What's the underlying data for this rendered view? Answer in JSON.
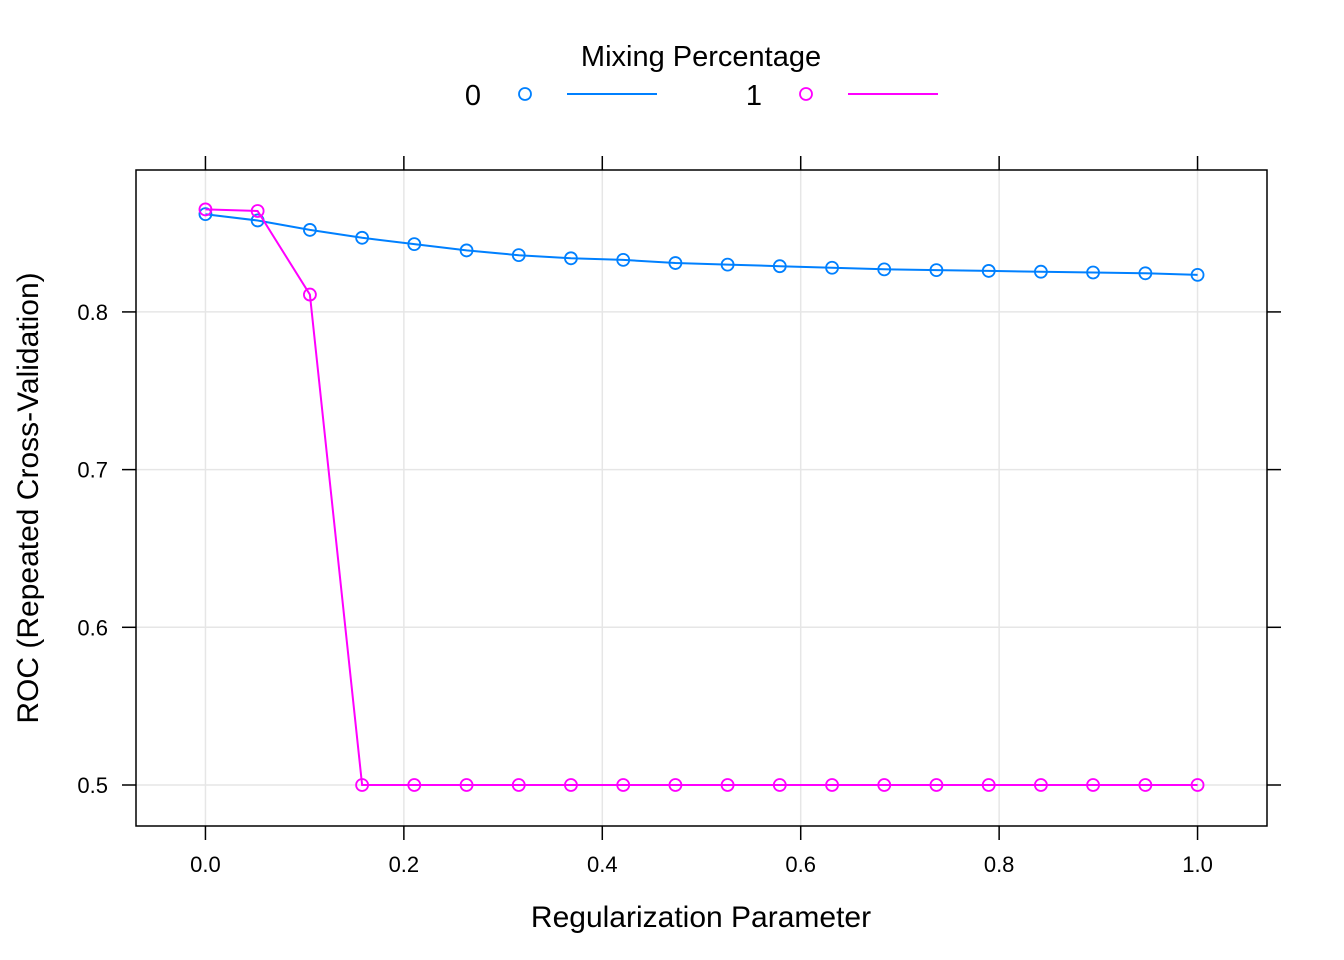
{
  "chart_data": {
    "type": "line",
    "xlabel": "Regularization Parameter",
    "ylabel": "ROC (Repeated Cross-Validation)",
    "xlim": [
      -0.07,
      1.07
    ],
    "ylim": [
      0.474,
      0.89
    ],
    "x_ticks": [
      "0.0",
      "0.2",
      "0.4",
      "0.6",
      "0.8",
      "1.0"
    ],
    "x_tick_values": [
      0.0,
      0.2,
      0.4,
      0.6,
      0.8,
      1.0
    ],
    "y_ticks": [
      "0.5",
      "0.6",
      "0.7",
      "0.8"
    ],
    "y_tick_values": [
      0.5,
      0.6,
      0.7,
      0.8
    ],
    "grid": true,
    "legend": {
      "title": "Mixing Percentage",
      "placement": "top",
      "entries": [
        "0",
        "1"
      ]
    },
    "x": [
      0.0,
      0.0526,
      0.1053,
      0.1579,
      0.2105,
      0.2632,
      0.3158,
      0.3684,
      0.4211,
      0.4737,
      0.5263,
      0.5789,
      0.6316,
      0.6842,
      0.7368,
      0.7895,
      0.8421,
      0.8947,
      0.9474,
      1.0
    ],
    "series": [
      {
        "name": "0",
        "color": "#0080ff",
        "values": [
          0.862,
          0.858,
          0.852,
          0.847,
          0.843,
          0.839,
          0.836,
          0.834,
          0.833,
          0.831,
          0.83,
          0.829,
          0.828,
          0.827,
          0.8265,
          0.826,
          0.8255,
          0.825,
          0.8245,
          0.8235
        ]
      },
      {
        "name": "1",
        "color": "#ff00ff",
        "values": [
          0.865,
          0.864,
          0.811,
          0.5,
          0.5,
          0.5,
          0.5,
          0.5,
          0.5,
          0.5,
          0.5,
          0.5,
          0.5,
          0.5,
          0.5,
          0.5,
          0.5,
          0.5,
          0.5,
          0.5
        ]
      }
    ]
  }
}
